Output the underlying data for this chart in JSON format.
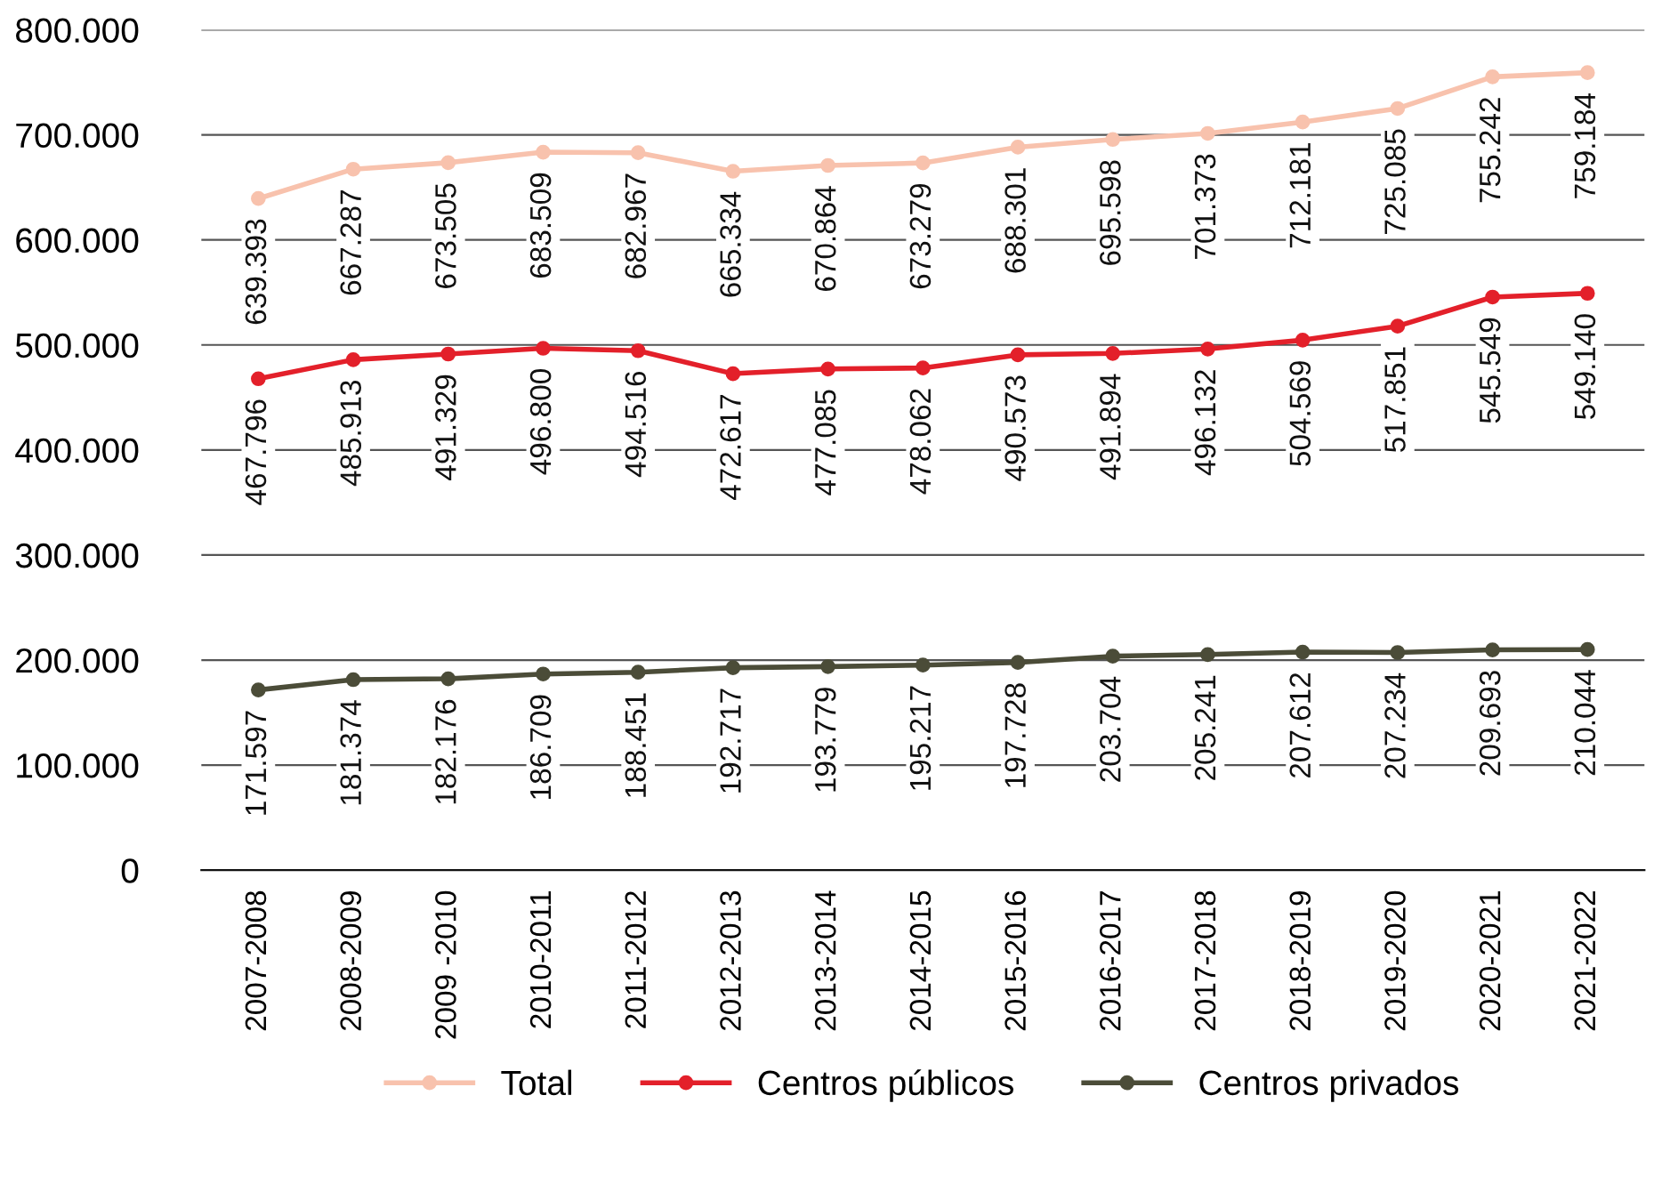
{
  "chart_data": {
    "type": "line",
    "categories": [
      "2007-2008",
      "2008-2009",
      "2009 -2010",
      "2010-2011",
      "2011-2012",
      "2012-2013",
      "2013-2014",
      "2014-2015",
      "2015-2016",
      "2016-2017",
      "2017-2018",
      "2018-2019",
      "2019-2020",
      "2020-2021",
      "2021-2022"
    ],
    "series": [
      {
        "name": "Total",
        "color": "#f8c2ad",
        "values": [
          639393,
          667287,
          673505,
          683509,
          682967,
          665334,
          670864,
          673279,
          688301,
          695598,
          701373,
          712181,
          725085,
          755242,
          759184
        ],
        "value_labels": [
          "639.393",
          "667.287",
          "673.505",
          "683.509",
          "682.967",
          "665.334",
          "670.864",
          "673.279",
          "688.301",
          "695.598",
          "701.373",
          "712.181",
          "725.085",
          "755.242",
          "759.184"
        ]
      },
      {
        "name": "Centros públicos",
        "color": "#e3202a",
        "values": [
          467796,
          485913,
          491329,
          496800,
          494516,
          472617,
          477085,
          478062,
          490573,
          491894,
          496132,
          504569,
          517851,
          545549,
          549140
        ],
        "value_labels": [
          "467.796",
          "485.913",
          "491.329",
          "496.800",
          "494.516",
          "472.617",
          "477.085",
          "478.062",
          "490.573",
          "491.894",
          "496.132",
          "504.569",
          "517.851",
          "545.549",
          "549.140"
        ]
      },
      {
        "name": "Centros privados",
        "color": "#4b4c38",
        "values": [
          171597,
          181374,
          182176,
          186709,
          188451,
          192717,
          193779,
          195217,
          197728,
          203704,
          205241,
          207612,
          207234,
          209693,
          210044
        ],
        "value_labels": [
          "171.597",
          "181.374",
          "182.176",
          "186.709",
          "188.451",
          "192.717",
          "193.779",
          "195.217",
          "197.728",
          "203.704",
          "205.241",
          "207.612",
          "207.234",
          "209.693",
          "210.044"
        ]
      }
    ],
    "ylim": [
      0,
      800000
    ],
    "yticks": [
      0,
      {
        "value": 100000,
        "label": "100.000"
      },
      {
        "value": 200000,
        "label": "200.000"
      },
      {
        "value": 300000,
        "label": "300.000"
      },
      {
        "value": 400000,
        "label": "400.000"
      },
      {
        "value": 500000,
        "label": "500.000"
      },
      {
        "value": 600000,
        "label": "600.000"
      },
      {
        "value": 700000,
        "label": "700.000"
      },
      {
        "value": 800000,
        "label": "800.000"
      }
    ],
    "grid": "y",
    "legend": "bottom",
    "marker": "circle",
    "line_style": "solid"
  }
}
